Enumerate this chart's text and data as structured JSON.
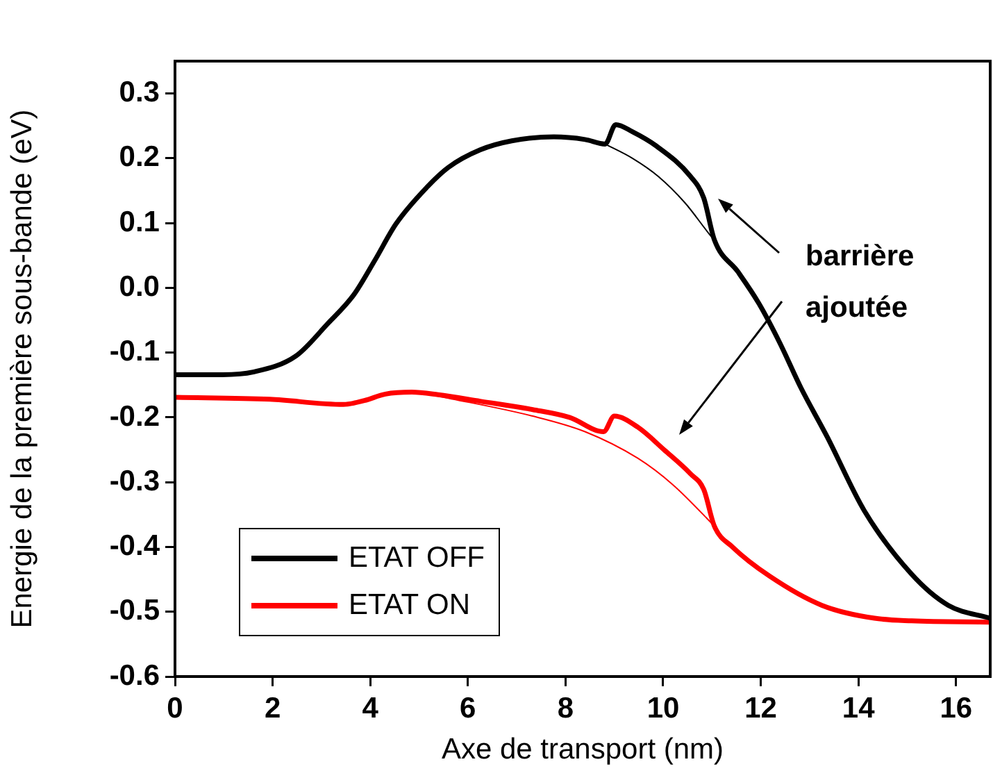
{
  "chart_data": {
    "type": "line",
    "xlabel": "Axe de transport (nm)",
    "ylabel": "Energie de la première sous-bande (eV)",
    "xlim": [
      0,
      16.7
    ],
    "xticks": [
      0,
      2,
      4,
      6,
      8,
      10,
      12,
      14,
      16
    ],
    "ylim": [
      -0.6,
      0.35
    ],
    "yticks": [
      -0.6,
      -0.5,
      -0.4,
      -0.3,
      -0.2,
      -0.1,
      {
        "value": 0,
        "label": "0.0"
      },
      0.1,
      0.2,
      0.3
    ],
    "grid": false,
    "legend": "bottom left",
    "marker": "none",
    "line_style": "solid",
    "annotations": [
      "barrière\najoutée"
    ],
    "series": [
      {
        "name": "ETAT OFF",
        "color": "#000000",
        "x": [
          0,
          0.97,
          1.6,
          2.48,
          3.12,
          3.66,
          4.09,
          4.53,
          5.17,
          5.6,
          6.25,
          6.9,
          7.76,
          8.4,
          8.81,
          9.03,
          9.37,
          9.86,
          10.56,
          10.83,
          11.05,
          11.53,
          11.96,
          12.39,
          12.82,
          13.36,
          14.12,
          15.09,
          15.84,
          16.7
        ],
        "values": [
          -0.134,
          -0.134,
          -0.13,
          -0.105,
          -0.056,
          -0.011,
          0.042,
          0.099,
          0.156,
          0.186,
          0.213,
          0.227,
          0.233,
          0.229,
          0.222,
          0.252,
          0.241,
          0.219,
          0.172,
          0.139,
          0.074,
          0.025,
          -0.024,
          -0.085,
          -0.154,
          -0.23,
          -0.344,
          -0.442,
          -0.49,
          -0.51
        ]
      },
      {
        "color": "#000000",
        "x": [
          8.81,
          9.37,
          9.9,
          10.45,
          11.0,
          11.05
        ],
        "values": [
          0.222,
          0.2,
          0.172,
          0.131,
          0.078,
          0.074
        ]
      },
      {
        "name": "ETAT ON",
        "color": "#ff0000",
        "x": [
          0,
          1.94,
          3.45,
          3.88,
          4.31,
          4.85,
          5.39,
          6.25,
          7.33,
          8.08,
          8.78,
          9.0,
          9.48,
          10.02,
          10.56,
          10.83,
          11.05,
          11.42,
          12.18,
          13.25,
          14.33,
          15.09,
          16.7
        ],
        "values": [
          -0.169,
          -0.172,
          -0.18,
          -0.174,
          -0.164,
          -0.161,
          -0.165,
          -0.175,
          -0.188,
          -0.2,
          -0.222,
          -0.198,
          -0.215,
          -0.25,
          -0.287,
          -0.311,
          -0.368,
          -0.4,
          -0.445,
          -0.49,
          -0.51,
          -0.514,
          -0.516
        ]
      },
      {
        "color": "#ff0000",
        "x": [
          5.39,
          7.33,
          8.4,
          9.48,
          10.2,
          11.0,
          11.05
        ],
        "values": [
          -0.167,
          -0.198,
          -0.222,
          -0.263,
          -0.304,
          -0.364,
          -0.368
        ]
      }
    ]
  }
}
